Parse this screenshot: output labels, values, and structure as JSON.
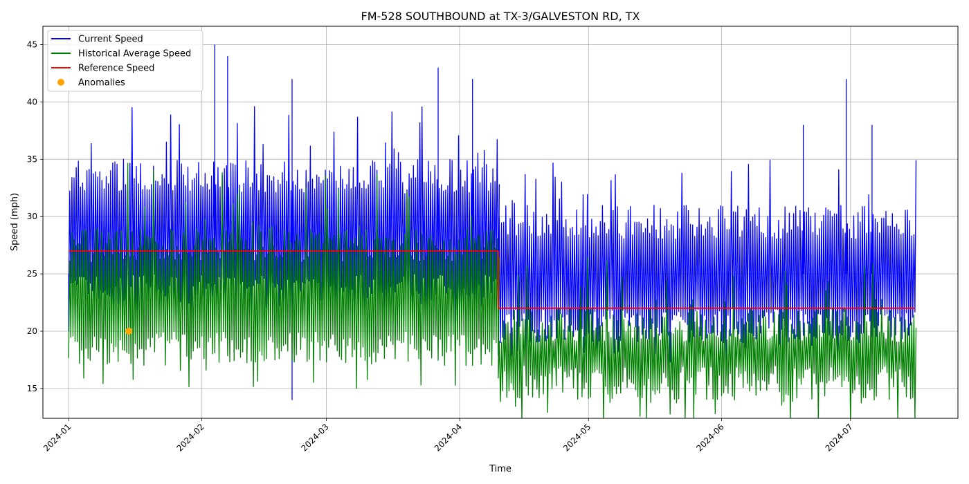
{
  "chart_data": {
    "type": "line",
    "title": "FM-528 SOUTHBOUND at TX-3/GALVESTON RD, TX",
    "xlabel": "Time",
    "ylabel": "Speed (mph)",
    "x_range": [
      "2023-12-26",
      "2024-07-26"
    ],
    "ylim": [
      12.4,
      46.6
    ],
    "x_ticks": [
      "2024-01",
      "2024-02",
      "2024-03",
      "2024-04",
      "2024-05",
      "2024-06",
      "2024-07"
    ],
    "y_ticks": [
      15,
      20,
      25,
      30,
      35,
      40,
      45
    ],
    "grid": true,
    "legend_position": "top-left",
    "series": [
      {
        "name": "Current Speed",
        "color": "#0000ff",
        "segments": [
          {
            "start": "2024-01-01",
            "end": "2024-04-10",
            "typical_low": 22,
            "typical_high": 35,
            "peak": 40
          },
          {
            "start": "2024-04-10",
            "end": "2024-07-16",
            "typical_low": 19,
            "typical_high": 31,
            "peak": 35
          }
        ],
        "extremes": [
          {
            "x": "2024-02-04",
            "y": 45
          },
          {
            "x": "2024-02-07",
            "y": 44
          },
          {
            "x": "2024-03-27",
            "y": 43
          },
          {
            "x": "2024-04-04",
            "y": 42
          },
          {
            "x": "2024-06-30",
            "y": 42
          },
          {
            "x": "2024-02-22",
            "y": 42
          },
          {
            "x": "2024-02-22",
            "y": 14
          },
          {
            "x": "2024-01-01",
            "y": 20
          },
          {
            "x": "2024-06-20",
            "y": 38
          },
          {
            "x": "2024-07-06",
            "y": 38
          }
        ]
      },
      {
        "name": "Historical Average Speed",
        "color": "#008000",
        "segments": [
          {
            "start": "2024-01-01",
            "end": "2024-04-10",
            "typical_low": 17,
            "typical_high": 29,
            "peak": 35
          },
          {
            "start": "2024-04-10",
            "end": "2024-07-16",
            "typical_low": 14,
            "typical_high": 22,
            "peak": 27
          }
        ]
      },
      {
        "name": "Reference Speed",
        "color": "#ff0000",
        "steps": [
          {
            "start": "2024-01-01",
            "end": "2024-04-10",
            "y": 27
          },
          {
            "start": "2024-04-10",
            "end": "2024-07-16",
            "y": 22
          }
        ]
      },
      {
        "name": "Anomalies",
        "color": "#ffa500",
        "type": "scatter",
        "points": [
          {
            "x": "2024-01-15",
            "y": 20
          }
        ]
      }
    ]
  }
}
